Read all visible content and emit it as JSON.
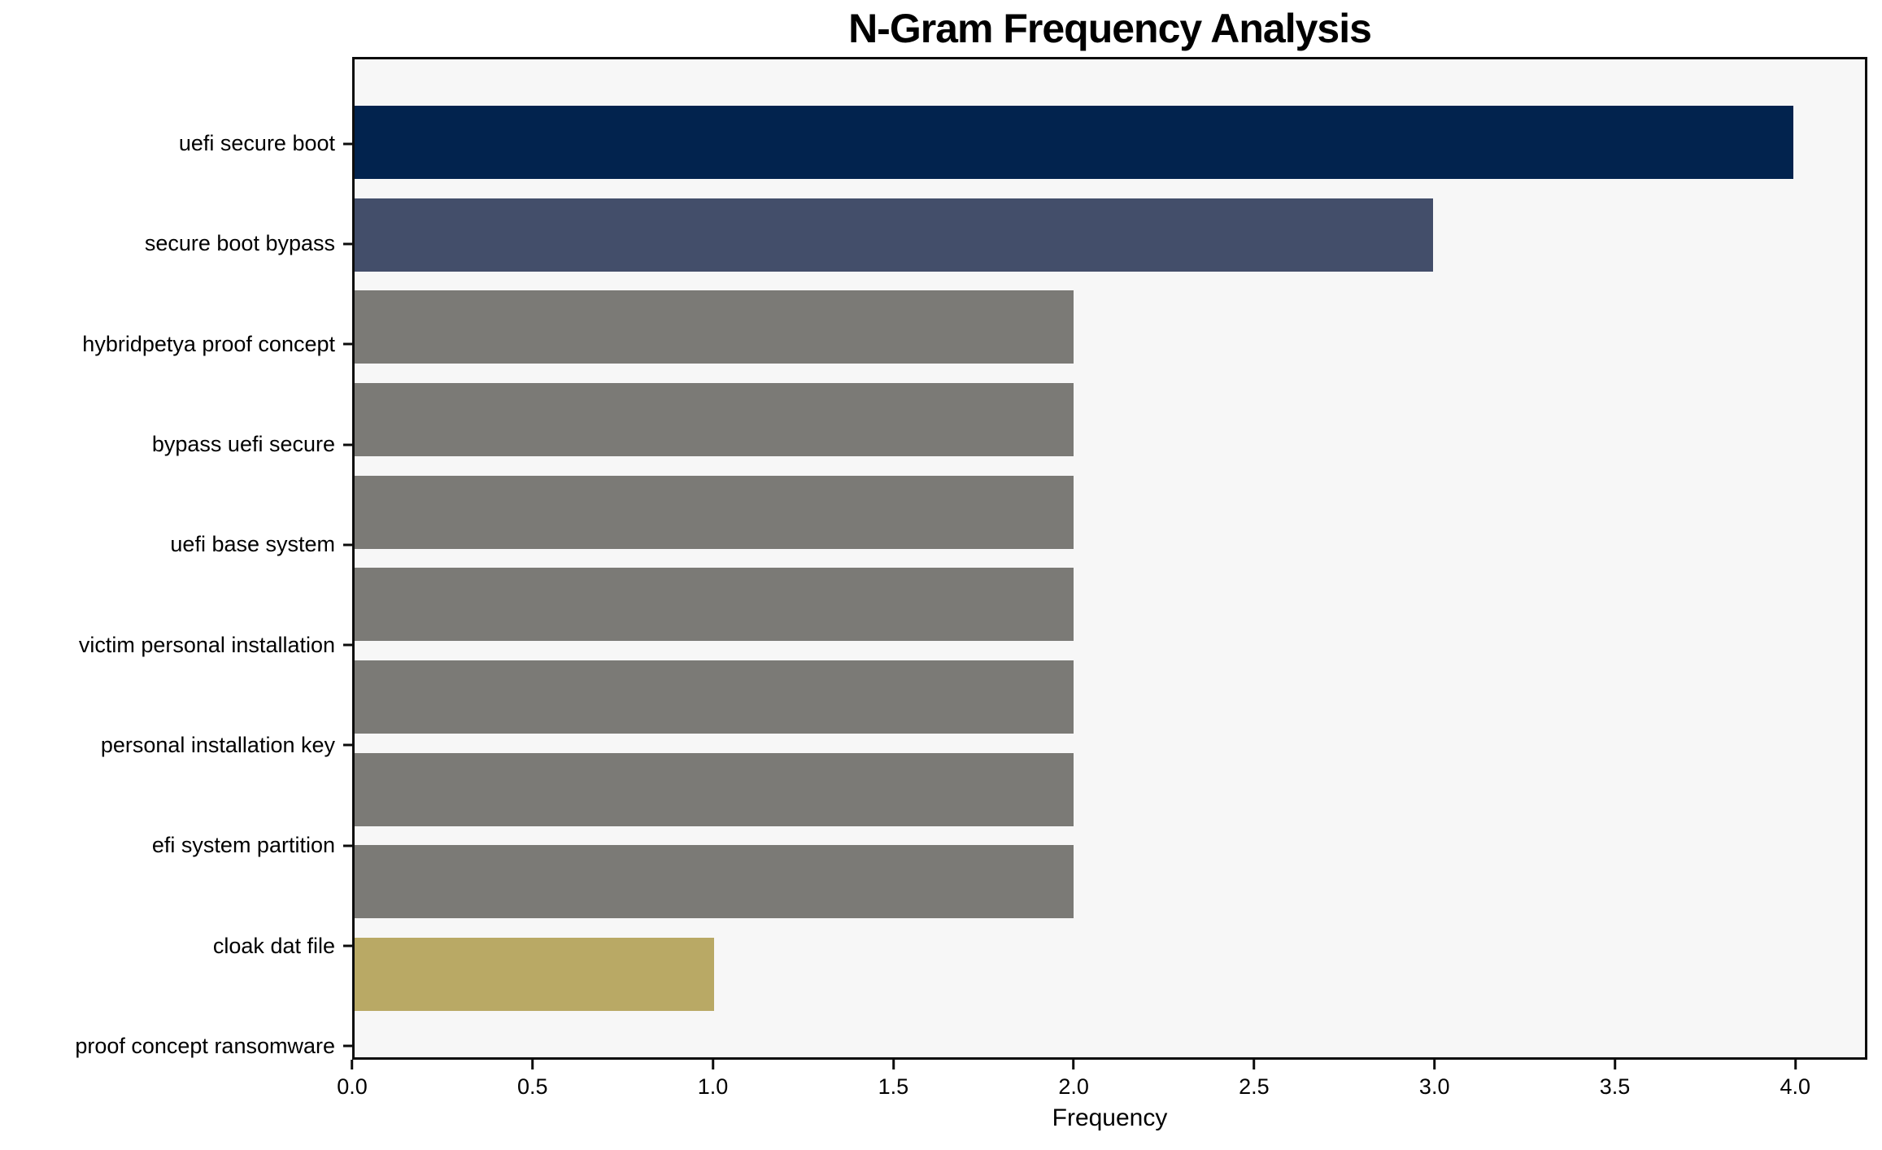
{
  "title": "N-Gram Frequency Analysis",
  "chart_data": {
    "type": "bar",
    "orientation": "horizontal",
    "title": "N-Gram Frequency Analysis",
    "xlabel": "Frequency",
    "ylabel": "",
    "categories": [
      "uefi secure boot",
      "secure boot bypass",
      "hybridpetya proof concept",
      "bypass uefi secure",
      "uefi base system",
      "victim personal installation",
      "personal installation key",
      "efi system partition",
      "cloak dat file",
      "proof concept ransomware"
    ],
    "values": [
      4,
      3,
      2,
      2,
      2,
      2,
      2,
      2,
      2,
      1
    ],
    "bar_colors": [
      "#02234e",
      "#434e6a",
      "#7b7a76",
      "#7b7a76",
      "#7b7a76",
      "#7b7a76",
      "#7b7a76",
      "#7b7a76",
      "#7b7a76",
      "#b9a965"
    ],
    "xlim": [
      0,
      4.2
    ],
    "xticks": [
      "0.0",
      "0.5",
      "1.0",
      "1.5",
      "2.0",
      "2.5",
      "3.0",
      "3.5",
      "4.0"
    ],
    "grid": false,
    "legend": false,
    "plot_background": "#f7f7f7",
    "figure_background": "#ffffff",
    "axis_color": "#0c0c0c"
  }
}
